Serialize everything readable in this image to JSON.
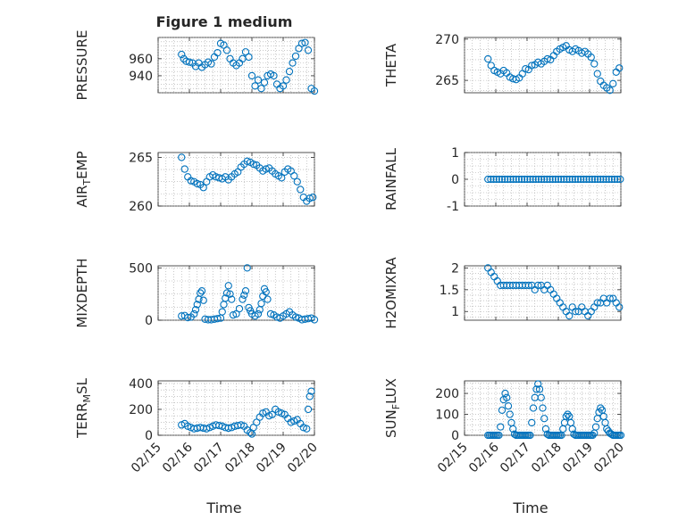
{
  "chart_data": {
    "type": "scatter",
    "title": "Figure 1 medium",
    "xlabel": "Time",
    "x_ticks": [
      "02/15",
      "02/16",
      "02/17",
      "02/18",
      "02/19",
      "02/20"
    ],
    "marker": "circle",
    "color": "#0072bd",
    "panels": [
      {
        "id": "pressure",
        "ylabel": "PRESSURE",
        "ylim": [
          920,
          985
        ],
        "yticks": [
          940,
          960
        ],
        "ytick_labels": [
          "940",
          "960"
        ],
        "xlim": [
          0,
          5
        ],
        "show_xticklabels": false,
        "x": [
          0.75,
          0.82,
          0.9,
          1.0,
          1.1,
          1.2,
          1.3,
          1.4,
          1.5,
          1.6,
          1.7,
          1.8,
          1.9,
          2.0,
          2.1,
          2.2,
          2.3,
          2.4,
          2.5,
          2.6,
          2.7,
          2.8,
          2.9,
          3.0,
          3.1,
          3.2,
          3.3,
          3.4,
          3.5,
          3.6,
          3.7,
          3.8,
          3.9,
          4.0,
          4.1,
          4.2,
          4.3,
          4.4,
          4.5,
          4.6,
          4.7,
          4.8,
          4.9,
          5.0
        ],
        "y": [
          965,
          960,
          957,
          956,
          955,
          951,
          955,
          950,
          953,
          956,
          954,
          962,
          967,
          978,
          976,
          970,
          960,
          955,
          952,
          955,
          960,
          968,
          962,
          940,
          928,
          935,
          925,
          932,
          940,
          942,
          940,
          930,
          925,
          928,
          935,
          945,
          955,
          963,
          972,
          978,
          979,
          970,
          925,
          922
        ]
      },
      {
        "id": "theta",
        "ylabel": "THETA",
        "ylim": [
          263.5,
          270.2
        ],
        "yticks": [
          265,
          270
        ],
        "ytick_labels": [
          "265",
          "270"
        ],
        "xlim": [
          0,
          5
        ],
        "show_xticklabels": false,
        "x": [
          0.75,
          0.85,
          0.95,
          1.05,
          1.15,
          1.25,
          1.35,
          1.45,
          1.55,
          1.65,
          1.75,
          1.85,
          1.95,
          2.05,
          2.15,
          2.25,
          2.35,
          2.45,
          2.55,
          2.65,
          2.75,
          2.85,
          2.95,
          3.05,
          3.15,
          3.25,
          3.35,
          3.45,
          3.55,
          3.65,
          3.75,
          3.85,
          3.95,
          4.05,
          4.15,
          4.25,
          4.35,
          4.45,
          4.55,
          4.65,
          4.75,
          4.85,
          4.95
        ],
        "y": [
          267.6,
          266.8,
          266.2,
          266.0,
          265.8,
          266.2,
          265.9,
          265.4,
          265.2,
          265.1,
          265.3,
          265.8,
          266.4,
          266.3,
          266.8,
          266.9,
          267.2,
          267.0,
          267.3,
          267.6,
          267.5,
          268.0,
          268.5,
          268.8,
          269.0,
          269.2,
          268.7,
          268.5,
          268.8,
          268.6,
          268.3,
          268.5,
          268.2,
          267.8,
          267.0,
          265.8,
          264.9,
          264.4,
          264.1,
          263.8,
          264.6,
          266.0,
          266.5
        ]
      },
      {
        "id": "air_temp",
        "ylabel": "AIR",
        "ylabel_sub": "T",
        "ylabel_rest": "EMP",
        "ylim": [
          260,
          265.5
        ],
        "yticks": [
          260,
          265
        ],
        "ytick_labels": [
          "260",
          "265"
        ],
        "xlim": [
          0,
          5
        ],
        "show_xticklabels": false,
        "x": [
          0.75,
          0.85,
          0.95,
          1.05,
          1.15,
          1.25,
          1.35,
          1.45,
          1.55,
          1.65,
          1.75,
          1.85,
          1.95,
          2.05,
          2.15,
          2.25,
          2.35,
          2.45,
          2.55,
          2.65,
          2.75,
          2.85,
          2.95,
          3.05,
          3.15,
          3.25,
          3.35,
          3.45,
          3.55,
          3.65,
          3.75,
          3.85,
          3.95,
          4.05,
          4.15,
          4.25,
          4.35,
          4.45,
          4.55,
          4.65,
          4.75,
          4.85,
          4.95
        ],
        "y": [
          265.0,
          263.8,
          263.0,
          262.6,
          262.5,
          262.3,
          262.2,
          261.9,
          262.5,
          263.0,
          263.2,
          263.0,
          262.9,
          262.8,
          263.0,
          262.7,
          263.0,
          263.3,
          263.5,
          264.0,
          264.3,
          264.6,
          264.5,
          264.3,
          264.2,
          263.9,
          263.6,
          263.8,
          263.9,
          263.6,
          263.3,
          263.1,
          262.9,
          263.5,
          263.8,
          263.6,
          263.1,
          262.5,
          261.7,
          260.9,
          260.5,
          260.8,
          260.9
        ]
      },
      {
        "id": "rainfall",
        "ylabel": "RAINFALL",
        "ylim": [
          -1,
          1
        ],
        "yticks": [
          -1,
          0,
          1
        ],
        "ytick_labels": [
          "-1",
          "0",
          "1"
        ],
        "xlim": [
          0,
          5
        ],
        "show_xticklabels": false,
        "x": [
          0.75,
          0.84,
          0.93,
          1.02,
          1.11,
          1.2,
          1.29,
          1.38,
          1.47,
          1.56,
          1.65,
          1.74,
          1.83,
          1.92,
          2.01,
          2.1,
          2.19,
          2.28,
          2.37,
          2.46,
          2.55,
          2.64,
          2.73,
          2.82,
          2.91,
          3.0,
          3.09,
          3.18,
          3.27,
          3.36,
          3.45,
          3.54,
          3.63,
          3.72,
          3.81,
          3.9,
          3.99,
          4.08,
          4.17,
          4.26,
          4.35,
          4.44,
          4.53,
          4.62,
          4.71,
          4.8,
          4.89,
          4.98
        ],
        "y": [
          0,
          0,
          0,
          0,
          0,
          0,
          0,
          0,
          0,
          0,
          0,
          0,
          0,
          0,
          0,
          0,
          0,
          0,
          0,
          0,
          0,
          0,
          0,
          0,
          0,
          0,
          0,
          0,
          0,
          0,
          0,
          0,
          0,
          0,
          0,
          0,
          0,
          0,
          0,
          0,
          0,
          0,
          0,
          0,
          0,
          0,
          0,
          0
        ]
      },
      {
        "id": "mixdepth",
        "ylabel": "MIXDEPTH",
        "ylim": [
          0,
          520
        ],
        "yticks": [
          0,
          500
        ],
        "ytick_labels": [
          "0",
          "500"
        ],
        "xlim": [
          0,
          5
        ],
        "show_xticklabels": false,
        "x": [
          0.75,
          0.85,
          0.95,
          1.05,
          1.15,
          1.2,
          1.25,
          1.3,
          1.35,
          1.4,
          1.45,
          1.5,
          1.6,
          1.7,
          1.8,
          1.9,
          2.0,
          2.05,
          2.1,
          2.15,
          2.2,
          2.25,
          2.3,
          2.35,
          2.4,
          2.5,
          2.6,
          2.7,
          2.75,
          2.8,
          2.85,
          2.9,
          2.95,
          3.0,
          3.1,
          3.2,
          3.25,
          3.3,
          3.35,
          3.4,
          3.45,
          3.5,
          3.6,
          3.7,
          3.8,
          3.9,
          4.0,
          4.1,
          4.2,
          4.3,
          4.4,
          4.5,
          4.6,
          4.7,
          4.8,
          4.9,
          5.0
        ],
        "y": [
          40,
          45,
          25,
          30,
          60,
          100,
          150,
          200,
          260,
          280,
          190,
          10,
          5,
          5,
          10,
          15,
          20,
          80,
          150,
          210,
          260,
          330,
          250,
          200,
          50,
          60,
          110,
          200,
          240,
          280,
          500,
          120,
          90,
          60,
          40,
          60,
          100,
          160,
          230,
          300,
          270,
          200,
          60,
          50,
          30,
          20,
          40,
          60,
          80,
          50,
          30,
          20,
          5,
          10,
          15,
          20,
          5
        ]
      },
      {
        "id": "h2omixra",
        "ylabel": "H2OMIXRA",
        "ylim": [
          0.8,
          2.05
        ],
        "yticks": [
          1,
          1.5,
          2
        ],
        "ytick_labels": [
          "1",
          "1.5",
          "2"
        ],
        "xlim": [
          0,
          5
        ],
        "show_xticklabels": false,
        "x": [
          0.75,
          0.85,
          0.95,
          1.05,
          1.15,
          1.25,
          1.35,
          1.45,
          1.55,
          1.65,
          1.75,
          1.85,
          1.95,
          2.05,
          2.15,
          2.25,
          2.35,
          2.45,
          2.55,
          2.65,
          2.75,
          2.85,
          2.95,
          3.05,
          3.15,
          3.25,
          3.35,
          3.45,
          3.55,
          3.65,
          3.75,
          3.85,
          3.95,
          4.05,
          4.15,
          4.25,
          4.35,
          4.45,
          4.55,
          4.65,
          4.75,
          4.85,
          4.95
        ],
        "y": [
          2.0,
          1.9,
          1.8,
          1.7,
          1.6,
          1.6,
          1.6,
          1.6,
          1.6,
          1.6,
          1.6,
          1.6,
          1.6,
          1.6,
          1.6,
          1.5,
          1.6,
          1.6,
          1.5,
          1.6,
          1.5,
          1.4,
          1.3,
          1.2,
          1.1,
          1.0,
          0.9,
          1.1,
          1.0,
          1.0,
          1.1,
          1.0,
          0.9,
          1.0,
          1.1,
          1.2,
          1.2,
          1.3,
          1.2,
          1.3,
          1.3,
          1.2,
          1.1
        ]
      },
      {
        "id": "terr_msl",
        "ylabel": "TERR",
        "ylabel_sub": "M",
        "ylabel_rest": "SL",
        "ylim": [
          0,
          420
        ],
        "yticks": [
          0,
          200,
          400
        ],
        "ytick_labels": [
          "0",
          "200",
          "400"
        ],
        "xlim": [
          0,
          5
        ],
        "show_xticklabels": true,
        "x": [
          0.75,
          0.85,
          0.95,
          1.05,
          1.15,
          1.25,
          1.35,
          1.45,
          1.55,
          1.65,
          1.75,
          1.85,
          1.95,
          2.05,
          2.15,
          2.25,
          2.35,
          2.45,
          2.55,
          2.65,
          2.75,
          2.85,
          2.95,
          3.0,
          3.05,
          3.15,
          3.25,
          3.35,
          3.45,
          3.55,
          3.65,
          3.75,
          3.85,
          3.95,
          4.05,
          4.15,
          4.25,
          4.35,
          4.45,
          4.55,
          4.65,
          4.75,
          4.8,
          4.85,
          4.9
        ],
        "y": [
          80,
          90,
          70,
          60,
          50,
          55,
          60,
          55,
          50,
          60,
          70,
          80,
          75,
          70,
          60,
          55,
          60,
          70,
          75,
          80,
          70,
          40,
          20,
          10,
          60,
          100,
          140,
          170,
          180,
          150,
          160,
          200,
          180,
          170,
          160,
          130,
          100,
          110,
          120,
          90,
          60,
          50,
          200,
          300,
          340
        ]
      },
      {
        "id": "sun_flux",
        "ylabel": "SUN",
        "ylabel_sub": "F",
        "ylabel_rest": "LUX",
        "ylim": [
          0,
          260
        ],
        "yticks": [
          0,
          100,
          200
        ],
        "ytick_labels": [
          "0",
          "100",
          "200"
        ],
        "xlim": [
          0,
          5
        ],
        "show_xticklabels": true,
        "x": [
          0.75,
          0.8,
          0.85,
          0.9,
          0.95,
          1.0,
          1.05,
          1.1,
          1.15,
          1.2,
          1.25,
          1.3,
          1.35,
          1.4,
          1.45,
          1.5,
          1.55,
          1.6,
          1.65,
          1.7,
          1.75,
          1.8,
          1.85,
          1.9,
          1.95,
          2.0,
          2.05,
          2.1,
          2.15,
          2.2,
          2.25,
          2.3,
          2.35,
          2.4,
          2.45,
          2.5,
          2.55,
          2.6,
          2.65,
          2.7,
          2.75,
          2.8,
          2.85,
          2.9,
          2.95,
          3.0,
          3.05,
          3.1,
          3.15,
          3.2,
          3.25,
          3.3,
          3.35,
          3.4,
          3.45,
          3.5,
          3.55,
          3.6,
          3.65,
          3.7,
          3.75,
          3.8,
          3.85,
          3.9,
          3.95,
          4.0,
          4.05,
          4.1,
          4.15,
          4.2,
          4.25,
          4.3,
          4.35,
          4.4,
          4.45,
          4.5,
          4.55,
          4.6,
          4.65,
          4.7,
          4.75,
          4.8,
          4.85,
          4.9,
          4.95,
          5.0
        ],
        "y": [
          0,
          0,
          0,
          0,
          0,
          0,
          0,
          0,
          40,
          120,
          170,
          200,
          180,
          140,
          100,
          60,
          30,
          5,
          0,
          0,
          0,
          0,
          0,
          0,
          0,
          0,
          0,
          0,
          60,
          130,
          180,
          220,
          245,
          220,
          180,
          130,
          80,
          30,
          5,
          0,
          0,
          0,
          0,
          0,
          0,
          0,
          0,
          0,
          30,
          60,
          90,
          100,
          90,
          60,
          30,
          5,
          0,
          0,
          0,
          0,
          0,
          0,
          0,
          0,
          0,
          0,
          0,
          0,
          10,
          40,
          80,
          110,
          130,
          120,
          90,
          60,
          30,
          20,
          10,
          5,
          0,
          0,
          0,
          0,
          0,
          0
        ]
      }
    ]
  }
}
